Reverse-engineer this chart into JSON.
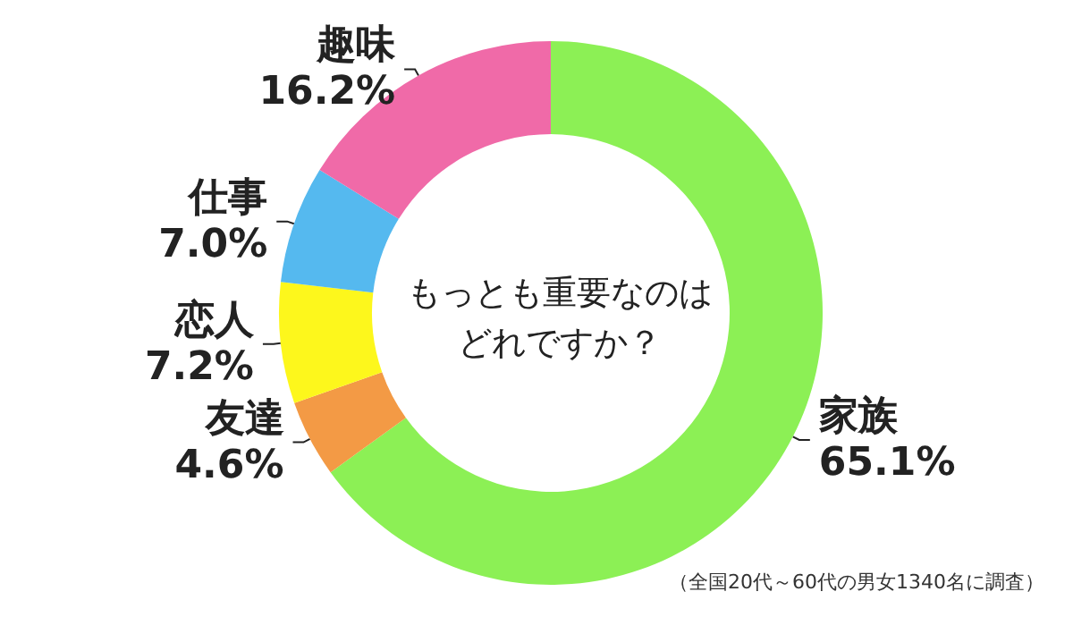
{
  "chart_data": {
    "type": "donut",
    "title": "もっとも重要なのはどれですか？",
    "categories": [
      "家族",
      "友達",
      "恋人",
      "仕事",
      "趣味"
    ],
    "values": [
      65.1,
      4.6,
      7.2,
      7.0,
      16.2
    ],
    "colors": [
      "#8cf055",
      "#f39a45",
      "#fdf71c",
      "#55b9ef",
      "#f06aa8"
    ],
    "value_labels": [
      "65.1%",
      "4.6%",
      "7.2%",
      "7.0%",
      "16.2%"
    ],
    "legend": false,
    "annotations": [
      "（全国20代～60代の男女1340名に調査）"
    ]
  }
}
